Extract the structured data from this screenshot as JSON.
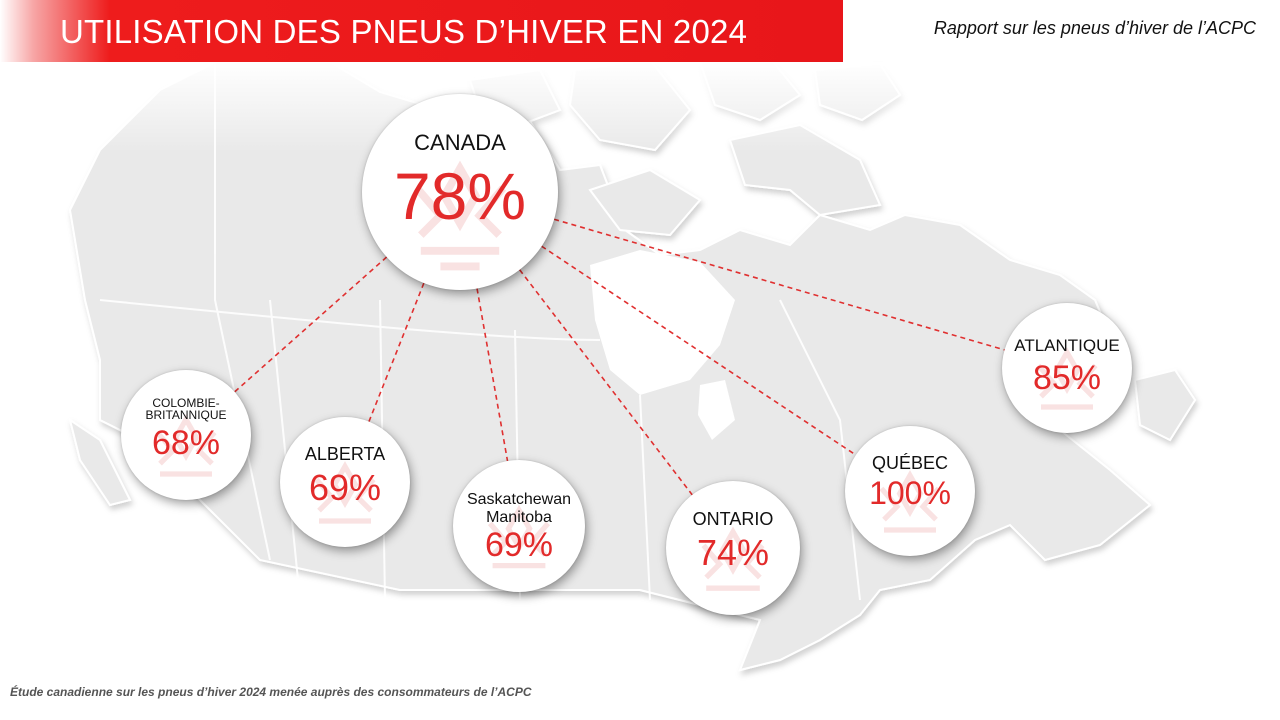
{
  "header": {
    "title": "UTILISATION DES PNEUS D’HIVER EN 2024",
    "subtitle": "Rapport sur les pneus d’hiver de l’ACPC",
    "accent_color": "#e8161a"
  },
  "national": {
    "name": "CANADA",
    "value": "78%"
  },
  "regions": [
    {
      "key": "bc",
      "name_line1": "COLOMBIE-",
      "name_line2": "BRITANNIQUE",
      "value": "68%"
    },
    {
      "key": "ab",
      "name_line1": "ALBERTA",
      "name_line2": "",
      "value": "69%"
    },
    {
      "key": "sk",
      "name_line1": "Saskatchewan",
      "name_line2": "Manitoba",
      "value": "69%"
    },
    {
      "key": "on",
      "name_line1": "ONTARIO",
      "name_line2": "",
      "value": "74%"
    },
    {
      "key": "qc",
      "name_line1": "QUÉBEC",
      "name_line2": "",
      "value": "100%"
    },
    {
      "key": "at",
      "name_line1": "ATLANTIQUE",
      "name_line2": "",
      "value": "85%"
    }
  ],
  "footnote": "Étude canadienne sur les pneus d’hiver 2024 menée auprès des consommateurs de l’ACPC",
  "colors": {
    "value_red": "#e22a2a",
    "map_fill": "#e9e9e9",
    "map_border": "#ffffff",
    "connector": "#e03030"
  }
}
